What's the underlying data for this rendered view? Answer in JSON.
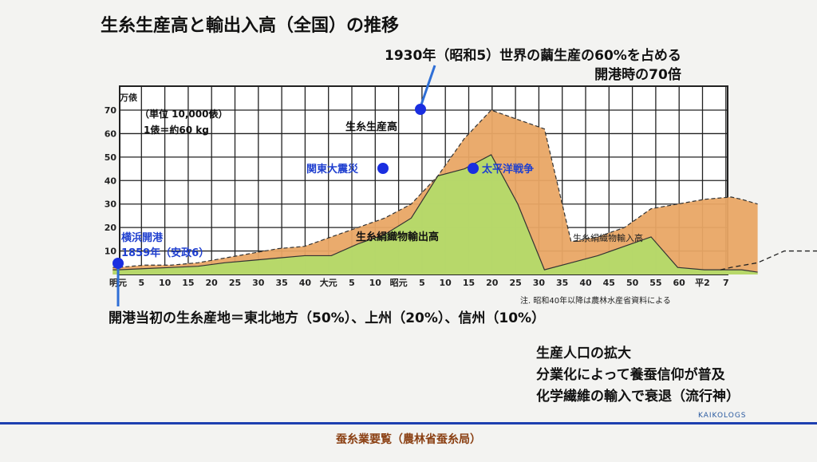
{
  "title": "生糸生産高と輸出入高（全国）の推移",
  "annotation_top": [
    "1930年（昭和5）世界の繭生産の60%を占める",
    "開港時の70倍"
  ],
  "unit_note": [
    "（単位 10,000俵）",
    "1俵＝約60 kg"
  ],
  "events": {
    "yokohama": [
      "横浜開港",
      "1859年（安政6）"
    ],
    "kanto": "関東大震災",
    "pacific": "太平洋戦争"
  },
  "note_bottom": "開港当初の生糸産地＝東北地方（50%）、上州（20%）、信州（10%）",
  "right_notes": [
    "生産人口の拡大",
    "分業化によって養蚕信仰が普及",
    "化学繊維の輸入で衰退（流行神）"
  ],
  "brand": "KAIKOLOGS",
  "footer": "蚕糸業要覧（農林省蚕糸局）",
  "colors": {
    "production": "#e9a665",
    "export": "#b5d96a",
    "event_dot": "#1a2ee0",
    "event_text": "#1f3fcf",
    "divider": "#1d3fb0",
    "footer_text": "#8a3f12"
  },
  "chart_data": {
    "type": "area",
    "ylabel": "万俵",
    "ylim": [
      0,
      75
    ],
    "yticks": [
      10,
      20,
      30,
      40,
      50,
      60,
      70
    ],
    "grid": true,
    "xticks": [
      "明元",
      "5",
      "10",
      "15",
      "20",
      "25",
      "30",
      "35",
      "40",
      "大元",
      "5",
      "10",
      "昭元",
      "5",
      "10",
      "15",
      "20",
      "25",
      "30",
      "35",
      "40",
      "45",
      "50",
      "55",
      "60",
      "平2",
      "7"
    ],
    "series": [
      {
        "name": "生糸生産高",
        "x": [
          -1,
          0,
          5,
          10,
          15,
          20,
          25,
          30,
          35,
          40,
          45,
          50,
          55,
          60,
          65,
          70,
          75,
          80,
          85,
          90,
          95,
          100,
          105,
          110,
          115,
          117,
          120
        ],
        "values": [
          3,
          3,
          4,
          4,
          5,
          7,
          9,
          11,
          12,
          16,
          20,
          24,
          30,
          42,
          58,
          70,
          66,
          62,
          14,
          16,
          20,
          28,
          30,
          32,
          33,
          32,
          30
        ]
      },
      {
        "name": "生糸絹織物輸出高",
        "x": [
          -1,
          0,
          5,
          10,
          15,
          20,
          25,
          30,
          35,
          40,
          45,
          50,
          55,
          60,
          65,
          70,
          75,
          80,
          85,
          90,
          95,
          100,
          105,
          110,
          115,
          117,
          120
        ],
        "values": [
          2,
          2,
          2.5,
          3,
          3.5,
          5,
          6,
          7,
          8,
          8,
          13,
          17,
          24,
          42,
          45,
          51,
          30,
          2,
          5,
          8,
          12,
          16,
          3,
          2,
          2,
          2,
          1
        ]
      },
      {
        "name": "生糸絹織物輸入高",
        "x": [
          113,
          115,
          120,
          125,
          130,
          135,
          140,
          143,
          145
        ],
        "values": [
          2,
          3,
          5,
          10,
          10,
          10,
          10,
          10,
          10
        ]
      }
    ],
    "annotations": [
      "注. 昭和40年以降は農林水産省資料による"
    ]
  }
}
